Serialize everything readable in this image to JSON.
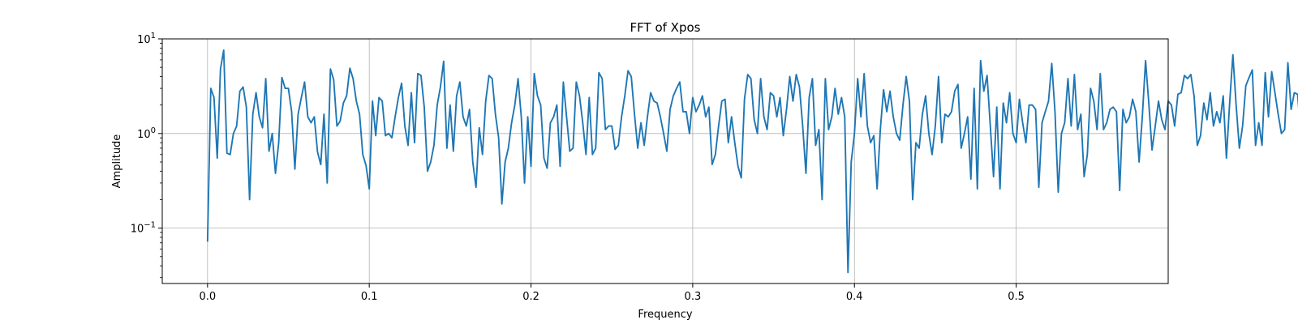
{
  "chart_data": {
    "type": "line",
    "title": "FFT of Xpos",
    "xlabel": "Frequency",
    "ylabel": "Amplitude",
    "xlim": [
      -0.028,
      0.594
    ],
    "ylim": [
      0.026,
      10
    ],
    "yscale": "log",
    "grid": true,
    "x_ticks": [
      {
        "value": 0.0,
        "label": "0.0"
      },
      {
        "value": 0.1,
        "label": "0.1"
      },
      {
        "value": 0.2,
        "label": "0.2"
      },
      {
        "value": 0.3,
        "label": "0.3"
      },
      {
        "value": 0.4,
        "label": "0.4"
      },
      {
        "value": 0.5,
        "label": "0.5"
      }
    ],
    "y_ticks": [
      {
        "value": 0.1,
        "base": "10",
        "exp": "−1"
      },
      {
        "value": 1,
        "base": "10",
        "exp": "0"
      },
      {
        "value": 10,
        "base": "10",
        "exp": "1"
      }
    ],
    "series": [
      {
        "color": "#1f77b4",
        "x_start": 0.0,
        "x_step": 0.002,
        "values": [
          0.072,
          3.0,
          2.4,
          0.55,
          4.8,
          7.6,
          0.62,
          0.6,
          1.0,
          1.2,
          2.8,
          3.1,
          1.9,
          0.2,
          1.6,
          2.7,
          1.5,
          1.15,
          3.8,
          0.65,
          1.0,
          0.38,
          0.8,
          3.9,
          3.0,
          3.0,
          1.7,
          0.42,
          1.6,
          2.4,
          3.5,
          1.5,
          1.3,
          1.5,
          0.64,
          0.47,
          1.6,
          0.3,
          4.8,
          3.7,
          1.2,
          1.35,
          2.1,
          2.5,
          4.9,
          3.8,
          2.2,
          1.6,
          0.6,
          0.46,
          0.26,
          2.2,
          0.95,
          2.4,
          2.2,
          0.95,
          1.0,
          0.9,
          1.5,
          2.4,
          3.4,
          1.2,
          0.75,
          2.7,
          0.8,
          4.3,
          4.1,
          1.9,
          0.4,
          0.5,
          0.75,
          2.0,
          3.1,
          5.8,
          0.7,
          2.0,
          0.65,
          2.5,
          3.5,
          1.5,
          1.2,
          1.8,
          0.5,
          0.27,
          1.15,
          0.6,
          2.2,
          4.1,
          3.8,
          1.6,
          0.9,
          0.18,
          0.5,
          0.7,
          1.3,
          2.0,
          3.8,
          1.5,
          0.3,
          1.5,
          0.45,
          4.3,
          2.5,
          2.0,
          0.55,
          0.43,
          1.3,
          1.5,
          2.0,
          0.45,
          3.5,
          1.5,
          0.65,
          0.7,
          3.5,
          2.5,
          1.3,
          0.6,
          2.4,
          0.6,
          0.7,
          4.4,
          3.8,
          1.1,
          1.2,
          1.2,
          0.68,
          0.75,
          1.5,
          2.5,
          4.6,
          4.0,
          1.6,
          0.7,
          1.3,
          0.75,
          1.5,
          2.7,
          2.2,
          2.1,
          1.5,
          1.0,
          0.65,
          1.8,
          2.5,
          3.0,
          3.5,
          1.7,
          1.7,
          1.0,
          2.4,
          1.7,
          2.0,
          2.5,
          1.5,
          1.9,
          0.47,
          0.6,
          1.2,
          2.2,
          2.3,
          0.8,
          1.5,
          0.8,
          0.45,
          0.34,
          2.3,
          4.2,
          3.8,
          1.4,
          1.0,
          3.8,
          1.5,
          1.1,
          2.7,
          2.5,
          1.5,
          2.4,
          0.95,
          1.8,
          4.0,
          2.2,
          4.2,
          3.1,
          1.2,
          0.38,
          2.4,
          3.8,
          0.75,
          1.1,
          0.2,
          3.8,
          1.1,
          1.5,
          3.0,
          1.6,
          2.4,
          1.5,
          0.034,
          0.5,
          1.0,
          3.8,
          1.5,
          4.3,
          1.2,
          0.8,
          0.95,
          0.26,
          1.1,
          2.9,
          1.7,
          2.8,
          1.5,
          1.0,
          0.85,
          2.0,
          4.0,
          2.2,
          0.2,
          0.8,
          0.7,
          1.6,
          2.5,
          1.0,
          0.6,
          1.2,
          4.0,
          0.8,
          1.6,
          1.5,
          1.7,
          2.8,
          3.3,
          0.7,
          1.0,
          1.5,
          0.33,
          3.0,
          0.26,
          5.9,
          2.8,
          4.1,
          1.2,
          0.35,
          1.9,
          0.26,
          2.1,
          1.3,
          2.7,
          1.0,
          0.8,
          2.3,
          1.3,
          0.8,
          2.0,
          2.0,
          1.8,
          0.27,
          1.3,
          1.7,
          2.2,
          5.5,
          1.7,
          0.24,
          1.0,
          1.3,
          3.8,
          1.2,
          4.2,
          1.1,
          1.6,
          0.35,
          0.6,
          3.0,
          2.2,
          1.1,
          4.3,
          1.1,
          1.3,
          1.8,
          1.9,
          1.7,
          0.25,
          1.8,
          1.3,
          1.5,
          2.3,
          1.7,
          0.5,
          1.5,
          5.9,
          2.1,
          0.67,
          1.2,
          2.2,
          1.4,
          1.1,
          2.2,
          2.0,
          1.2,
          2.6,
          2.7,
          4.1,
          3.8,
          4.2,
          2.5,
          0.75,
          0.95,
          2.1,
          1.4,
          2.7,
          1.2,
          1.7,
          1.3,
          2.5,
          0.55,
          2.1,
          6.8,
          2.0,
          0.7,
          1.2,
          3.2,
          3.9,
          4.7,
          0.75,
          1.3,
          0.75,
          4.4,
          1.5,
          4.5,
          2.7,
          1.6,
          1.0,
          1.1,
          5.6,
          1.8,
          2.7,
          2.6,
          1.0,
          0.9,
          1.2,
          2.5,
          1.1,
          1.6,
          0.47,
          0.75,
          0.11,
          0.65,
          1.0,
          2.2,
          2.7,
          2.0,
          1.2,
          1.5,
          1.4,
          1.3,
          1.4,
          3.2,
          1.1,
          0.6,
          1.0,
          0.95,
          1.5,
          2.9,
          0.48,
          0.45,
          0.21,
          1.6,
          2.9,
          0.8,
          0.7,
          0.9,
          0.7,
          1.5,
          2.3,
          6.4,
          1.3,
          5.0,
          2.2,
          1.4,
          0.95,
          2.4,
          1.6,
          3.0,
          4.7,
          1.2,
          0.42,
          2.1,
          2.2,
          4.2,
          1.5,
          1.7,
          2.1,
          1.4,
          1.3,
          2.8,
          2.5,
          0.33,
          3.0,
          3.4,
          2.6,
          1.05
        ]
      }
    ]
  }
}
